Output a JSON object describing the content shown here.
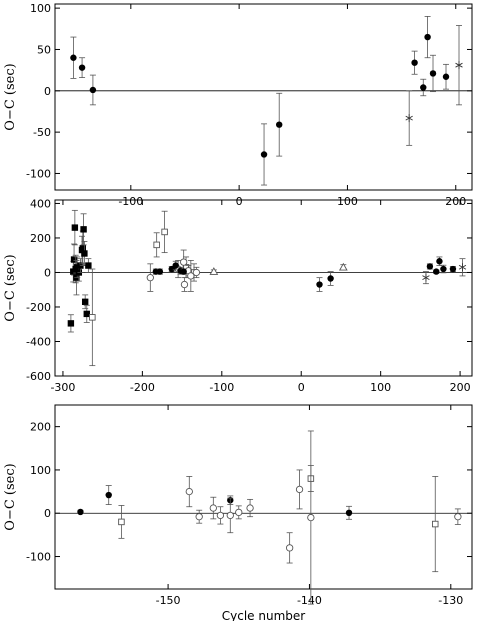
{
  "chart_data": [
    {
      "type": "scatter",
      "ylabel": "O−C (sec)",
      "xlim": [
        -170,
        215
      ],
      "ylim": [
        -120,
        105
      ],
      "xticks": [
        -100,
        0,
        100,
        200
      ],
      "yticks": [
        -100,
        -50,
        0,
        50,
        100
      ],
      "reference_line": 0,
      "series": [
        {
          "marker": "filled-circle",
          "points": [
            {
              "x": -153,
              "y": 40,
              "err": 25
            },
            {
              "x": -145,
              "y": 28,
              "err": 12
            },
            {
              "x": -135,
              "y": 1,
              "err": 18
            },
            {
              "x": 23,
              "y": -77,
              "err": 37
            },
            {
              "x": 37,
              "y": -41,
              "err": 38
            },
            {
              "x": 162,
              "y": 34,
              "err": 14
            },
            {
              "x": 170,
              "y": 4,
              "err": 10
            },
            {
              "x": 174,
              "y": 65,
              "err": 25
            },
            {
              "x": 179,
              "y": 21,
              "err": 22
            },
            {
              "x": 191,
              "y": 17,
              "err": 15
            }
          ]
        },
        {
          "marker": "asterisk",
          "points": [
            {
              "x": 157,
              "y": -33,
              "err": 33
            },
            {
              "x": 203,
              "y": 31,
              "err": 48
            }
          ]
        }
      ]
    },
    {
      "type": "scatter",
      "ylabel": "O−C (sec)",
      "xlim": [
        -310,
        215
      ],
      "ylim": [
        -600,
        420
      ],
      "xticks": [
        -300,
        -200,
        -100,
        0,
        100,
        200
      ],
      "yticks": [
        -600,
        -400,
        -200,
        0,
        200,
        400
      ],
      "reference_line": 0,
      "series": [
        {
          "marker": "filled-square",
          "points": [
            {
              "x": -290,
              "y": -295,
              "err": 50
            },
            {
              "x": -287,
              "y": 5,
              "err": 60
            },
            {
              "x": -286,
              "y": 75,
              "err": 90
            },
            {
              "x": -285,
              "y": 260,
              "err": 100
            },
            {
              "x": -284,
              "y": 20,
              "err": 80
            },
            {
              "x": -283,
              "y": -30,
              "err": 100
            },
            {
              "x": -282,
              "y": 30,
              "err": 60
            },
            {
              "x": -280,
              "y": 0,
              "err": 50
            },
            {
              "x": -278,
              "y": 40,
              "err": 40
            },
            {
              "x": -276,
              "y": 130,
              "err": 80
            },
            {
              "x": -275,
              "y": 140,
              "err": 100
            },
            {
              "x": -274,
              "y": 250,
              "err": 90
            },
            {
              "x": -273,
              "y": 110,
              "err": 70
            },
            {
              "x": -272,
              "y": -170,
              "err": 40
            },
            {
              "x": -270,
              "y": -240,
              "err": 50
            },
            {
              "x": -268,
              "y": 40,
              "err": 40
            }
          ]
        },
        {
          "marker": "open-square",
          "points": [
            {
              "x": -263,
              "y": -260,
              "err": 280
            },
            {
              "x": -182,
              "y": 160,
              "err": 70
            },
            {
              "x": -172,
              "y": 235,
              "err": 120
            },
            {
              "x": -145,
              "y": 30,
              "err": 60
            },
            {
              "x": -135,
              "y": 0,
              "err": 50
            }
          ]
        },
        {
          "marker": "open-circle",
          "points": [
            {
              "x": -190,
              "y": -30,
              "err": 80
            },
            {
              "x": -155,
              "y": 20,
              "err": 50
            },
            {
              "x": -148,
              "y": 60,
              "err": 70
            },
            {
              "x": -147,
              "y": -70,
              "err": 40
            },
            {
              "x": -142,
              "y": 10,
              "err": 30
            },
            {
              "x": -139,
              "y": -20,
              "err": 90
            },
            {
              "x": -132,
              "y": 0,
              "err": 30
            }
          ]
        },
        {
          "marker": "filled-circle",
          "points": [
            {
              "x": -183,
              "y": 5,
              "err": 15
            },
            {
              "x": -178,
              "y": 5,
              "err": 15
            },
            {
              "x": -163,
              "y": 20,
              "err": 15
            },
            {
              "x": -158,
              "y": 40,
              "err": 25
            },
            {
              "x": -152,
              "y": 10,
              "err": 20
            },
            {
              "x": -148,
              "y": 5,
              "err": 15
            },
            {
              "x": 23,
              "y": -70,
              "err": 40
            },
            {
              "x": 37,
              "y": -35,
              "err": 40
            },
            {
              "x": 162,
              "y": 35,
              "err": 15
            },
            {
              "x": 170,
              "y": 5,
              "err": 10
            },
            {
              "x": 174,
              "y": 65,
              "err": 25
            },
            {
              "x": 179,
              "y": 20,
              "err": 22
            },
            {
              "x": 191,
              "y": 20,
              "err": 15
            }
          ]
        },
        {
          "marker": "open-triangle",
          "points": [
            {
              "x": -110,
              "y": 5,
              "err": 10
            },
            {
              "x": 53,
              "y": 30,
              "err": 15
            }
          ]
        },
        {
          "marker": "asterisk",
          "points": [
            {
              "x": 157,
              "y": -30,
              "err": 35
            },
            {
              "x": 203,
              "y": 30,
              "err": 50
            }
          ]
        }
      ]
    },
    {
      "type": "scatter",
      "ylabel": "O−C (sec)",
      "xlabel": "Cycle number",
      "xlim": [
        -158,
        -128.5
      ],
      "ylim": [
        -175,
        250
      ],
      "xticks": [
        -150,
        -140,
        -130
      ],
      "xticklabels": [
        "-150",
        "-140",
        "-130"
      ],
      "yticks": [
        -100,
        0,
        100,
        200
      ],
      "reference_line": 0,
      "series": [
        {
          "marker": "filled-circle",
          "points": [
            {
              "x": -156.2,
              "y": 3,
              "err": 3
            },
            {
              "x": -154.2,
              "y": 42,
              "err": 22
            },
            {
              "x": -145.6,
              "y": 30,
              "err": 10
            },
            {
              "x": -137.2,
              "y": 1,
              "err": 15
            }
          ]
        },
        {
          "marker": "open-square",
          "points": [
            {
              "x": -153.3,
              "y": -20,
              "err": 38
            },
            {
              "x": -139.9,
              "y": 80,
              "err": 30
            },
            {
              "x": -131.1,
              "y": -25,
              "err": 110
            }
          ]
        },
        {
          "marker": "open-circle",
          "points": [
            {
              "x": -148.5,
              "y": 50,
              "err": 35
            },
            {
              "x": -147.8,
              "y": -8,
              "err": 15
            },
            {
              "x": -146.8,
              "y": 12,
              "err": 25
            },
            {
              "x": -146.3,
              "y": -5,
              "err": 20
            },
            {
              "x": -145.6,
              "y": -5,
              "err": 40
            },
            {
              "x": -145.0,
              "y": 2,
              "err": 15
            },
            {
              "x": -144.2,
              "y": 12,
              "err": 20
            },
            {
              "x": -141.4,
              "y": -80,
              "err": 35
            },
            {
              "x": -140.7,
              "y": 55,
              "err": 45
            },
            {
              "x": -139.9,
              "y": -10,
              "err": 200
            },
            {
              "x": -129.5,
              "y": -8,
              "err": 18
            }
          ]
        }
      ]
    }
  ]
}
